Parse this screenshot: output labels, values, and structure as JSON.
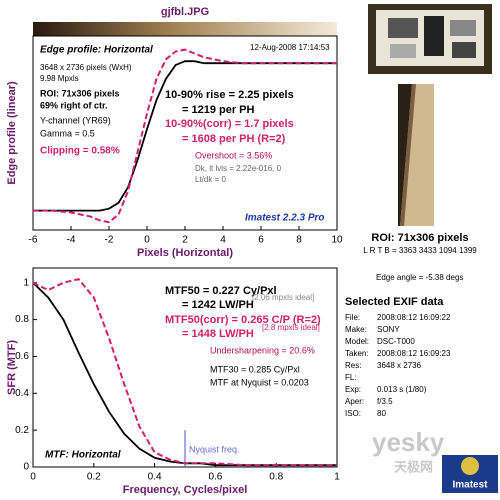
{
  "title": "gjfbl.JPG",
  "chart_data": [
    {
      "type": "line",
      "xlabel": "Pixels (Horizontal)",
      "ylabel": "Edge profile (linear)",
      "x": [
        -6,
        -5,
        -4,
        -3,
        -2.5,
        -2,
        -1.5,
        -1,
        -0.5,
        0,
        0.5,
        1,
        1.5,
        2,
        2.5,
        3,
        4,
        5,
        6,
        7,
        8,
        9,
        10
      ],
      "series": [
        {
          "name": "Edge",
          "color": "#000000",
          "values": [
            0.1,
            0.1,
            0.1,
            0.1,
            0.1,
            0.11,
            0.14,
            0.22,
            0.36,
            0.52,
            0.67,
            0.78,
            0.85,
            0.87,
            0.87,
            0.86,
            0.86,
            0.86,
            0.86,
            0.86,
            0.86,
            0.86,
            0.86
          ]
        },
        {
          "name": "Edge (corr)",
          "color": "#d0206a",
          "values": [
            0.1,
            0.1,
            0.09,
            0.07,
            0.05,
            0.04,
            0.08,
            0.2,
            0.4,
            0.6,
            0.78,
            0.88,
            0.92,
            0.93,
            0.91,
            0.89,
            0.87,
            0.86,
            0.86,
            0.86,
            0.86,
            0.86,
            0.86
          ]
        }
      ],
      "xlim": [
        -6,
        10
      ],
      "ylim": [
        0,
        1
      ],
      "xticks": [
        -6,
        -4,
        -2,
        0,
        2,
        4,
        6,
        8,
        10
      ],
      "annotations": [
        {
          "text": "Edge profile: Horizontal",
          "color": "#000000"
        },
        {
          "text": "12-Aug-2008 17:14:53",
          "color": "#000000"
        },
        {
          "text": "3648 x 2736 pixels (WxH)",
          "color": "#000000"
        },
        {
          "text": "9.98 Mpxls",
          "color": "#000000"
        },
        {
          "text": "ROI: 71x306 pixels",
          "color": "#000000"
        },
        {
          "text": "69% right of ctr.",
          "color": "#000000"
        },
        {
          "text": "Y-channel (YR69)",
          "color": "#000000"
        },
        {
          "text": "Gamma = 0.5",
          "color": "#000000"
        },
        {
          "text": "Clipping = 0.58%",
          "color": "#d0206a"
        },
        {
          "text": "10-90% rise = 2.25 pixels",
          "color": "#000000"
        },
        {
          "text": "= 1219 per PH",
          "color": "#000000"
        },
        {
          "text": "10-90%(corr) = 1.7 pixels",
          "color": "#d0206a"
        },
        {
          "text": "= 1608 per PH (R=2)",
          "color": "#d0206a"
        },
        {
          "text": "Overshoot = 3.56%",
          "color": "#b01050"
        },
        {
          "text": "Dk, lt lvls = 2.22e-016, 0",
          "color": "#666666"
        },
        {
          "text": "Lt/dk = 0",
          "color": "#666666"
        },
        {
          "text": "Imatest 2.2.3 Pro",
          "color": "#1a3aa8"
        }
      ]
    },
    {
      "type": "line",
      "xlabel": "Frequency, Cycles/pixel",
      "ylabel": "SFR (MTF)",
      "x": [
        0,
        0.05,
        0.1,
        0.15,
        0.2,
        0.25,
        0.3,
        0.35,
        0.4,
        0.45,
        0.5,
        0.55,
        0.6,
        0.7,
        0.8,
        0.9,
        1
      ],
      "series": [
        {
          "name": "MTF",
          "color": "#000000",
          "values": [
            1,
            0.92,
            0.8,
            0.62,
            0.45,
            0.3,
            0.18,
            0.1,
            0.05,
            0.03,
            0.02,
            0.02,
            0.01,
            0.01,
            0.01,
            0.01,
            0.01
          ]
        },
        {
          "name": "MTF (corr)",
          "color": "#d0206a",
          "values": [
            1,
            0.96,
            1,
            1.02,
            0.92,
            0.7,
            0.45,
            0.22,
            0.08,
            0.04,
            0.02,
            0.02,
            0.02,
            0.01,
            0.01,
            0.01,
            0.01
          ]
        }
      ],
      "xlim": [
        0,
        1
      ],
      "ylim": [
        0,
        1.08
      ],
      "xticks": [
        0,
        0.2,
        0.4,
        0.6,
        0.8,
        1
      ],
      "yticks": [
        0,
        0.2,
        0.4,
        0.6,
        0.8,
        1
      ],
      "nyquist": 0.5,
      "nyquist_label": "Nyquist freq.",
      "nyquist_color": "#6a6ad0",
      "annotations": [
        {
          "text": "MTF50 = 0.227 Cy/Pxl",
          "color": "#000000"
        },
        {
          "text": "= 1242 LW/PH",
          "color": "#000000"
        },
        {
          "text": "[2.06 mpxls ideal]",
          "color": "#888888"
        },
        {
          "text": "MTF50(corr) = 0.265 C/P (R=2)",
          "color": "#d0206a"
        },
        {
          "text": "= 1448 LW/PH",
          "color": "#d0206a"
        },
        {
          "text": "[2.8 mpxls ideal]",
          "color": "#d0206a"
        },
        {
          "text": "Undersharpening = 20.6%",
          "color": "#b01050"
        },
        {
          "text": "MTF30 = 0.285 Cy/Pxl",
          "color": "#000000"
        },
        {
          "text": "MTF at Nyquist = 0.0203",
          "color": "#000000"
        },
        {
          "text": "MTF: Horizontal",
          "color": "#000000"
        }
      ]
    }
  ],
  "roi_panel": {
    "roi": "ROI: 71x306 pixels",
    "lrtb": "L R T B = 3363 3433 1094 1399",
    "edge_angle": "Edge angle = -5.38 degs"
  },
  "exif": {
    "title": "Selected EXIF data",
    "rows": [
      [
        "File:",
        "2008:08:12 16:09:22"
      ],
      [
        "Make:",
        "SONY"
      ],
      [
        "Model:",
        "DSC-T000"
      ],
      [
        "Taken:",
        "2008:08:12 16:09:23"
      ],
      [
        "Res:",
        "3648 x 2736"
      ],
      [
        "FL:"
      ],
      [
        "Exp:",
        "0.013 s  (1/80)"
      ],
      [
        "Aper:",
        "f/3.5"
      ],
      [
        "ISO:",
        "80"
      ]
    ]
  },
  "watermark": {
    "text": "yesky",
    "cn": "天极网",
    "logo": "Imatest"
  }
}
